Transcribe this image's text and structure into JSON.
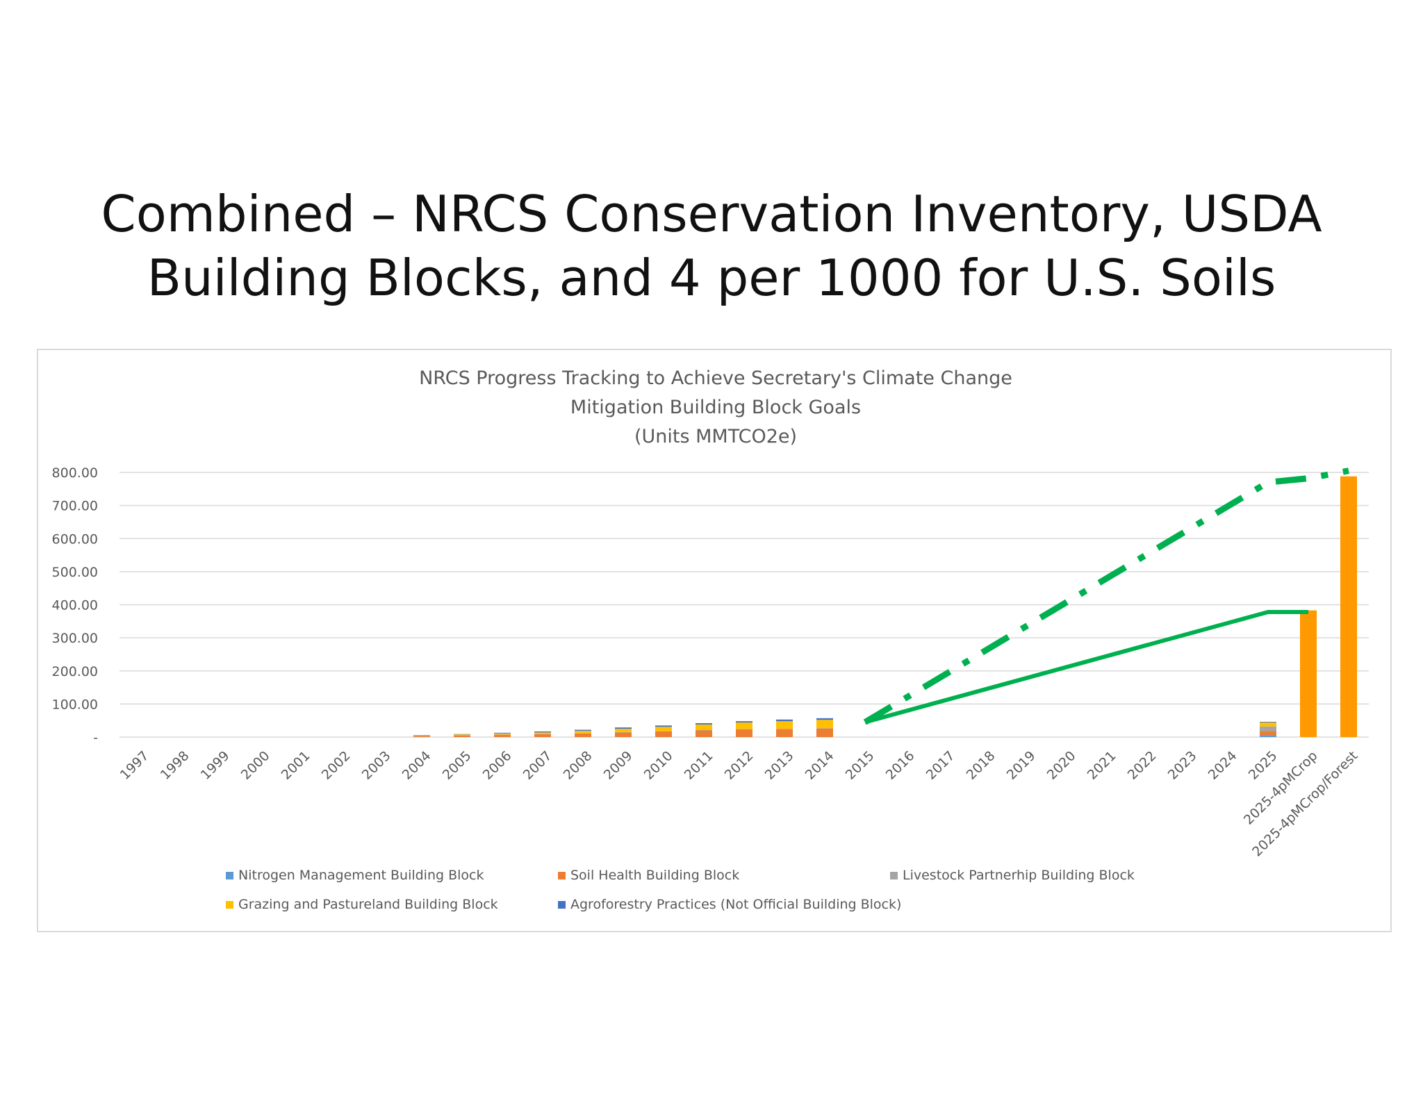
{
  "slide": {
    "title_line1": "Combined – NRCS Conservation Inventory, USDA",
    "title_line2": "Building Blocks, and 4 per 1000 for U.S. Soils"
  },
  "chart_data": {
    "type": "bar",
    "stacked": true,
    "title_lines": [
      "NRCS Progress Tracking to Achieve Secretary's Climate Change",
      "Mitigation Building Block Goals",
      "(Units MMTCO2e)"
    ],
    "xlabel": "",
    "ylabel": "",
    "ylim": [
      0,
      800
    ],
    "y_ticks": [
      0,
      100,
      200,
      300,
      400,
      500,
      600,
      700,
      800
    ],
    "y_tick_labels": [
      "-",
      "100.00",
      "200.00",
      "300.00",
      "400.00",
      "500.00",
      "600.00",
      "700.00",
      "800.00"
    ],
    "grid": true,
    "legend_position": "bottom",
    "categories": [
      "1997",
      "1998",
      "1999",
      "2000",
      "2001",
      "2002",
      "2003",
      "2004",
      "2005",
      "2006",
      "2007",
      "2008",
      "2009",
      "2010",
      "2011",
      "2012",
      "2013",
      "2014",
      "2015",
      "2016",
      "2017",
      "2018",
      "2019",
      "2020",
      "2021",
      "2022",
      "2023",
      "2024",
      "2025",
      "2025-4pMCrop",
      "2025-4pMCrop/Forest"
    ],
    "series": [
      {
        "name": "Nitrogen Management Building Block",
        "color": "#5b9bd5",
        "values": [
          0,
          0,
          0,
          0,
          0,
          0,
          0,
          0,
          0,
          0,
          0,
          0,
          0,
          0,
          0,
          0,
          0,
          0,
          0,
          0,
          0,
          0,
          0,
          0,
          0,
          0,
          0,
          0,
          6,
          0,
          0
        ]
      },
      {
        "name": "Soil Health Building Block",
        "color": "#ed7d31",
        "values": [
          0,
          0,
          0,
          0,
          0,
          0,
          0,
          3,
          5,
          7,
          9,
          11,
          14,
          17,
          20,
          23,
          24,
          26,
          0,
          0,
          0,
          0,
          0,
          0,
          0,
          0,
          0,
          0,
          12,
          0,
          0
        ]
      },
      {
        "name": "Livestock Partnerhip Building Block",
        "color": "#a5a5a5",
        "values": [
          0,
          0,
          0,
          0,
          0,
          0,
          0,
          1,
          1,
          1,
          1,
          1,
          1,
          1,
          1,
          1,
          1,
          1,
          0,
          0,
          0,
          0,
          0,
          0,
          0,
          0,
          0,
          0,
          14,
          0,
          0
        ]
      },
      {
        "name": "Grazing and Pastureland Building Block",
        "color": "#ffc000",
        "values": [
          0,
          0,
          0,
          0,
          0,
          0,
          0,
          1,
          2,
          3,
          4,
          7,
          10,
          13,
          17,
          20,
          23,
          25,
          0,
          0,
          0,
          0,
          0,
          0,
          0,
          0,
          0,
          0,
          12,
          0,
          0
        ]
      },
      {
        "name": "Agroforestry Practices (Not Official Building Block)",
        "color": "#4472c4",
        "values": [
          0,
          0,
          0,
          0,
          0,
          0,
          0,
          1,
          1,
          2,
          3,
          3,
          4,
          4,
          4,
          4,
          5,
          5,
          0,
          0,
          0,
          0,
          0,
          0,
          0,
          0,
          0,
          0,
          2,
          0,
          0
        ]
      }
    ],
    "extra_bars": [
      {
        "category": "2025-4pMCrop",
        "value": 383,
        "color": "#ff9900"
      },
      {
        "category": "2025-4pMCrop/Forest",
        "value": 788,
        "color": "#ff9900"
      }
    ],
    "overlay_lines": [
      {
        "style": "solid",
        "color": "#00b050",
        "points": [
          [
            "2015",
            45
          ],
          [
            "2025",
            378
          ],
          [
            "2025-4pMCrop",
            378
          ]
        ]
      },
      {
        "style": "dash-dot",
        "color": "#00b050",
        "points": [
          [
            "2015",
            45
          ],
          [
            "2025",
            770
          ],
          [
            "2025-4pMCrop",
            782
          ],
          [
            "2025-4pMCrop/Forest",
            805
          ]
        ]
      }
    ]
  }
}
